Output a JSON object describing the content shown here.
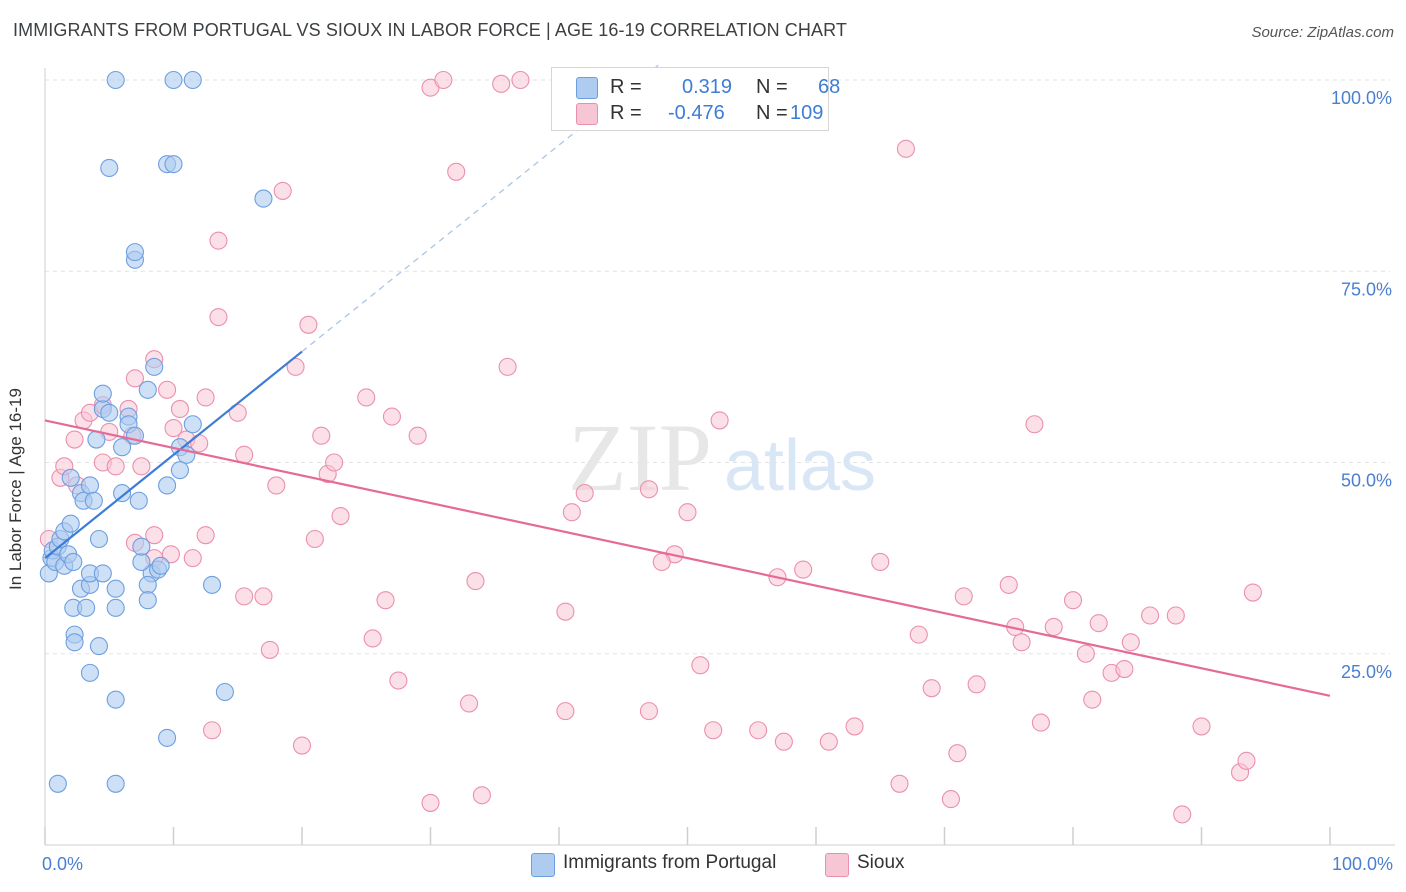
{
  "header": {
    "title": "IMMIGRANTS FROM PORTUGAL VS SIOUX IN LABOR FORCE | AGE 16-19 CORRELATION CHART",
    "source": "Source: ZipAtlas.com"
  },
  "legend": {
    "rows": [
      {
        "r_label": "R =",
        "r_value": "0.319",
        "n_label": "N =",
        "n_value": "68"
      },
      {
        "r_label": "R =",
        "r_value": "-0.476",
        "n_label": "N =",
        "n_value": "109"
      }
    ]
  },
  "bottom_legend": {
    "series1": "Immigrants from Portugal",
    "series2": "Sioux"
  },
  "watermark": {
    "zip": "ZIP",
    "atlas": "atlas"
  },
  "colors": {
    "blue_fill": "#aecbf0",
    "blue_stroke": "#6d9fe0",
    "blue_line": "#3d7dd6",
    "pink_fill": "#f7c6d5",
    "pink_stroke": "#ec8faf",
    "pink_line": "#e66a96",
    "axis_text": "#4a7fd0",
    "grid": "#e3e3e3"
  },
  "chart_data": {
    "type": "scatter",
    "title": "IMMIGRANTS FROM PORTUGAL VS SIOUX IN LABOR FORCE | AGE 16-19 CORRELATION CHART",
    "xlabel": "",
    "ylabel": "In Labor Force | Age 16-19",
    "xlim": [
      0,
      100
    ],
    "ylim": [
      0,
      100
    ],
    "x_tick_labels": [
      "0.0%",
      "100.0%"
    ],
    "y_tick_labels": [
      "25.0%",
      "50.0%",
      "75.0%",
      "100.0%"
    ],
    "y_ticks": [
      25,
      50,
      75,
      100
    ],
    "series": [
      {
        "name": "Immigrants from Portugal",
        "R": 0.319,
        "N": 68,
        "trend": {
          "x0": 0,
          "y0": 37.5,
          "x1": 20,
          "y1": 64.5,
          "dashed_to_x": 48
        },
        "points": [
          [
            0.3,
            35.5
          ],
          [
            0.5,
            37.5
          ],
          [
            0.6,
            38.5
          ],
          [
            0.8,
            37.0
          ],
          [
            1.0,
            39.0
          ],
          [
            1.2,
            40.0
          ],
          [
            1.5,
            36.5
          ],
          [
            1.8,
            38.0
          ],
          [
            1.5,
            41.0
          ],
          [
            2.0,
            42.0
          ],
          [
            2.2,
            37.0
          ],
          [
            2.0,
            48.0
          ],
          [
            2.8,
            46.0
          ],
          [
            3.0,
            45.0
          ],
          [
            3.5,
            47.0
          ],
          [
            3.8,
            45.0
          ],
          [
            2.2,
            31.0
          ],
          [
            3.2,
            31.0
          ],
          [
            2.8,
            33.5
          ],
          [
            3.5,
            34.0
          ],
          [
            3.5,
            35.5
          ],
          [
            4.5,
            35.5
          ],
          [
            5.5,
            33.5
          ],
          [
            5.5,
            31.0
          ],
          [
            2.3,
            27.5
          ],
          [
            2.3,
            26.5
          ],
          [
            3.5,
            22.5
          ],
          [
            4.2,
            26.0
          ],
          [
            4.2,
            40.0
          ],
          [
            4.0,
            53.0
          ],
          [
            4.5,
            57.0
          ],
          [
            4.5,
            59.0
          ],
          [
            5.0,
            56.5
          ],
          [
            6.5,
            56.0
          ],
          [
            6.5,
            55.0
          ],
          [
            7.0,
            53.5
          ],
          [
            6.0,
            46.0
          ],
          [
            6.0,
            52.0
          ],
          [
            7.3,
            45.0
          ],
          [
            8.0,
            59.5
          ],
          [
            8.5,
            62.5
          ],
          [
            9.5,
            47.0
          ],
          [
            10.5,
            52.0
          ],
          [
            11.0,
            51.0
          ],
          [
            11.5,
            55.0
          ],
          [
            10.5,
            49.0
          ],
          [
            8.3,
            35.5
          ],
          [
            8.0,
            34.0
          ],
          [
            8.0,
            32.0
          ],
          [
            8.8,
            36.0
          ],
          [
            9.0,
            36.5
          ],
          [
            7.5,
            37.0
          ],
          [
            7.5,
            39.0
          ],
          [
            13.0,
            34.0
          ],
          [
            14.0,
            20.0
          ],
          [
            9.5,
            89.0
          ],
          [
            10.0,
            89.0
          ],
          [
            5.0,
            88.5
          ],
          [
            7.0,
            76.5
          ],
          [
            7.0,
            77.5
          ],
          [
            17.0,
            84.5
          ],
          [
            10.0,
            100.0
          ],
          [
            11.5,
            100.0
          ],
          [
            5.5,
            100.0
          ],
          [
            1.0,
            8.0
          ],
          [
            5.5,
            8.0
          ],
          [
            9.5,
            14.0
          ],
          [
            5.5,
            19.0
          ]
        ]
      },
      {
        "name": "Sioux",
        "R": -0.476,
        "N": 109,
        "trend": {
          "x0": 0,
          "y0": 55.5,
          "x1": 100,
          "y1": 19.5
        },
        "points": [
          [
            0.3,
            40.0
          ],
          [
            1.2,
            48.0
          ],
          [
            1.5,
            49.5
          ],
          [
            2.3,
            53.0
          ],
          [
            2.5,
            47.0
          ],
          [
            3.0,
            55.5
          ],
          [
            3.5,
            56.5
          ],
          [
            4.5,
            57.5
          ],
          [
            4.5,
            50.0
          ],
          [
            5.0,
            54.0
          ],
          [
            5.5,
            49.5
          ],
          [
            6.5,
            57.0
          ],
          [
            6.8,
            53.5
          ],
          [
            7.0,
            61.0
          ],
          [
            7.5,
            49.5
          ],
          [
            8.5,
            63.5
          ],
          [
            9.5,
            59.5
          ],
          [
            10.0,
            54.5
          ],
          [
            10.5,
            57.0
          ],
          [
            11.0,
            53.0
          ],
          [
            12.0,
            52.5
          ],
          [
            12.5,
            58.5
          ],
          [
            12.5,
            40.5
          ],
          [
            11.5,
            37.5
          ],
          [
            7.0,
            39.5
          ],
          [
            8.5,
            40.5
          ],
          [
            8.5,
            37.5
          ],
          [
            9.8,
            38.0
          ],
          [
            13.5,
            79.0
          ],
          [
            13.5,
            69.0
          ],
          [
            15.0,
            56.5
          ],
          [
            15.5,
            51.0
          ],
          [
            15.5,
            32.5
          ],
          [
            17.0,
            32.5
          ],
          [
            17.5,
            25.5
          ],
          [
            18.0,
            47.0
          ],
          [
            18.5,
            85.5
          ],
          [
            19.5,
            62.5
          ],
          [
            20.5,
            68.0
          ],
          [
            21.0,
            40.0
          ],
          [
            21.5,
            53.5
          ],
          [
            22.0,
            48.5
          ],
          [
            22.5,
            50.0
          ],
          [
            23.0,
            43.0
          ],
          [
            25.0,
            58.5
          ],
          [
            25.5,
            27.0
          ],
          [
            26.5,
            32.0
          ],
          [
            27.0,
            56.0
          ],
          [
            27.5,
            21.5
          ],
          [
            29.0,
            53.5
          ],
          [
            30.0,
            99.0
          ],
          [
            31.0,
            100.0
          ],
          [
            32.0,
            88.0
          ],
          [
            33.5,
            34.5
          ],
          [
            35.5,
            99.5
          ],
          [
            36.0,
            62.5
          ],
          [
            37.0,
            100.0
          ],
          [
            40.5,
            17.5
          ],
          [
            40.5,
            30.5
          ],
          [
            41.0,
            43.5
          ],
          [
            42.0,
            46.0
          ],
          [
            47.0,
            46.5
          ],
          [
            47.0,
            17.5
          ],
          [
            49.0,
            38.0
          ],
          [
            48.0,
            37.0
          ],
          [
            50.0,
            43.5
          ],
          [
            51.0,
            23.5
          ],
          [
            52.0,
            15.0
          ],
          [
            52.5,
            55.5
          ],
          [
            55.5,
            15.0
          ],
          [
            57.0,
            35.0
          ],
          [
            57.5,
            13.5
          ],
          [
            59.0,
            36.0
          ],
          [
            61.0,
            13.5
          ],
          [
            63.0,
            15.5
          ],
          [
            65.0,
            37.0
          ],
          [
            66.5,
            8.0
          ],
          [
            67.0,
            91.0
          ],
          [
            68.0,
            27.5
          ],
          [
            69.0,
            20.5
          ],
          [
            70.5,
            6.0
          ],
          [
            71.0,
            12.0
          ],
          [
            71.5,
            32.5
          ],
          [
            72.5,
            21.0
          ],
          [
            75.0,
            34.0
          ],
          [
            75.5,
            28.5
          ],
          [
            76.0,
            26.5
          ],
          [
            77.0,
            55.0
          ],
          [
            77.5,
            16.0
          ],
          [
            78.5,
            28.5
          ],
          [
            80.0,
            32.0
          ],
          [
            81.0,
            25.0
          ],
          [
            81.5,
            19.0
          ],
          [
            82.0,
            29.0
          ],
          [
            83.0,
            22.5
          ],
          [
            84.0,
            23.0
          ],
          [
            84.5,
            26.5
          ],
          [
            86.0,
            30.0
          ],
          [
            88.0,
            30.0
          ],
          [
            88.5,
            4.0
          ],
          [
            90.0,
            15.5
          ],
          [
            93.0,
            9.5
          ],
          [
            93.5,
            11.0
          ],
          [
            94.0,
            33.0
          ],
          [
            13.0,
            15.0
          ],
          [
            20.0,
            13.0
          ],
          [
            33.0,
            18.5
          ],
          [
            30.0,
            5.5
          ],
          [
            34.0,
            6.5
          ]
        ]
      }
    ]
  }
}
